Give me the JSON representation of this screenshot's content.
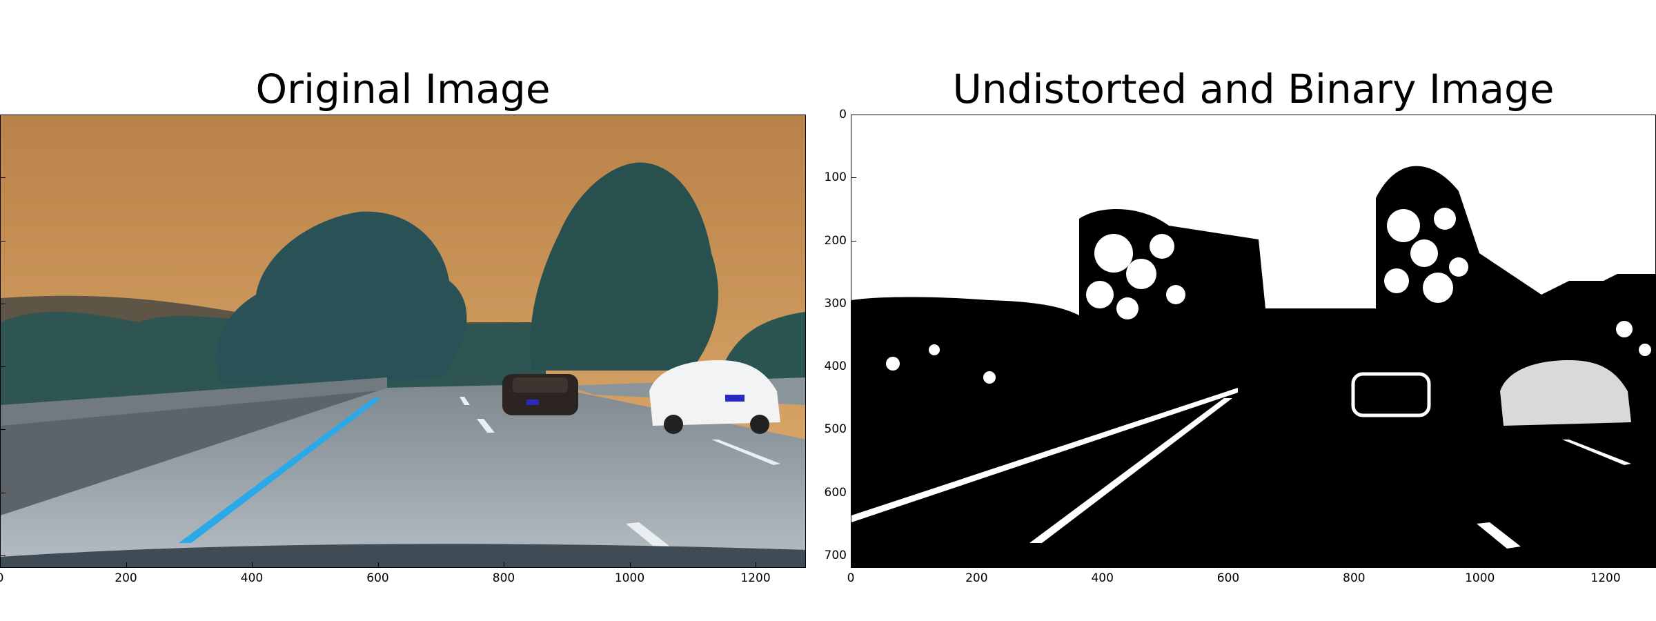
{
  "figure": {
    "left": {
      "title": "Original Image",
      "x_ticks": [
        "0",
        "200",
        "400",
        "600",
        "800",
        "1000",
        "1200"
      ],
      "x_tick_values": [
        0,
        200,
        400,
        600,
        800,
        1000,
        1200
      ]
    },
    "right": {
      "title": "Undistorted and Binary Image",
      "x_ticks": [
        "0",
        "200",
        "400",
        "600",
        "800",
        "1000",
        "1200"
      ],
      "x_tick_values": [
        0,
        200,
        400,
        600,
        800,
        1000,
        1200
      ],
      "y_ticks": [
        "0",
        "100",
        "200",
        "300",
        "400",
        "500",
        "600",
        "700"
      ],
      "y_tick_values": [
        0,
        100,
        200,
        300,
        400,
        500,
        600,
        700
      ]
    },
    "image_extent": {
      "x_max": 1280,
      "y_max": 720
    },
    "colors": {
      "sky": "#c8945a",
      "foliage": "#2e5a5a",
      "road": "#9aa3ab",
      "lane_left": "#2aa8e8",
      "lane_right": "#ffffff",
      "binary_fg": "#ffffff",
      "binary_bg": "#000000"
    }
  }
}
